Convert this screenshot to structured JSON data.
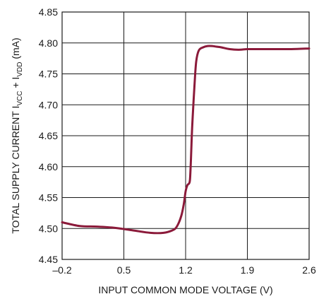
{
  "chart_data": {
    "type": "line",
    "title": "",
    "xlabel": "INPUT COMMON MODE VOLTAGE (V)",
    "ylabel": {
      "prefix": "TOTAL SUPPLY CURRENT I",
      "sub1": "VCC",
      "middle": " + I",
      "sub2": "VDD",
      "suffix": " (mA)"
    },
    "xlim": [
      -0.2,
      2.6
    ],
    "ylim": [
      4.45,
      4.85
    ],
    "xticks": [
      -0.2,
      0.5,
      1.2,
      1.9,
      2.6
    ],
    "xtick_labels": [
      "–0.2",
      "0.5",
      "1.2",
      "1.9",
      "2.6"
    ],
    "yticks": [
      4.45,
      4.5,
      4.55,
      4.6,
      4.65,
      4.7,
      4.75,
      4.8,
      4.85
    ],
    "ytick_labels": [
      "4.45",
      "4.50",
      "4.55",
      "4.60",
      "4.65",
      "4.70",
      "4.75",
      "4.80",
      "4.85"
    ],
    "grid": true,
    "series": [
      {
        "color": "#8b1a3a",
        "x": [
          -0.2,
          0.0,
          0.2,
          0.4,
          0.6,
          0.8,
          0.95,
          1.05,
          1.1,
          1.15,
          1.18,
          1.2,
          1.22,
          1.24,
          1.25,
          1.26,
          1.27,
          1.28,
          1.3,
          1.32,
          1.35,
          1.4,
          1.45,
          1.5,
          1.55,
          1.6,
          1.7,
          1.8,
          1.9,
          2.0,
          2.2,
          2.4,
          2.6
        ],
        "y": [
          4.51,
          4.504,
          4.503,
          4.501,
          4.497,
          4.493,
          4.493,
          4.497,
          4.503,
          4.52,
          4.54,
          4.56,
          4.57,
          4.573,
          4.58,
          4.61,
          4.65,
          4.68,
          4.73,
          4.77,
          4.788,
          4.793,
          4.795,
          4.795,
          4.794,
          4.793,
          4.79,
          4.789,
          4.79,
          4.79,
          4.79,
          4.79,
          4.791
        ]
      }
    ]
  }
}
